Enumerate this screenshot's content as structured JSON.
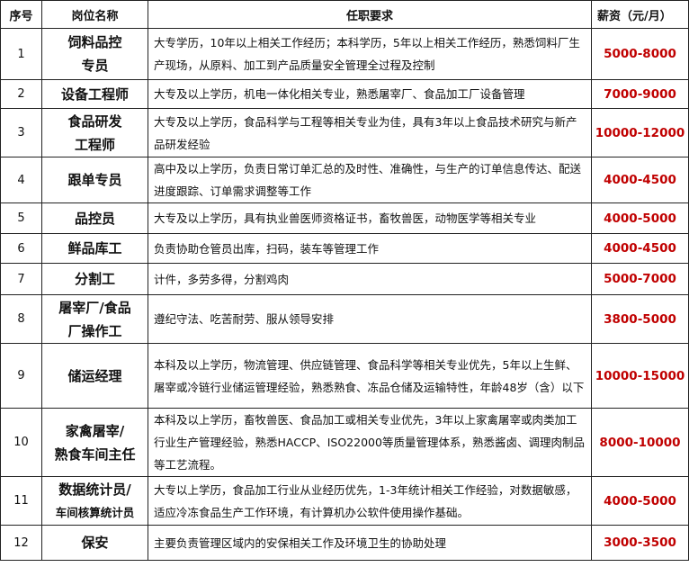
{
  "colors": {
    "salary": "#c00000",
    "border": "#222222"
  },
  "header": {
    "no": "序号",
    "title": "岗位名称",
    "requirement": "任职要求",
    "salary": "薪资（元/月）"
  },
  "rows": [
    {
      "no": "1",
      "title": [
        "饲料品控",
        "专员"
      ],
      "requirement": "大专学历，10年以上相关工作经历；本科学历，5年以上相关工作经历，熟悉饲料厂生产现场，从原料、加工到产品质量安全管理全过程及控制",
      "salary": "5000-8000"
    },
    {
      "no": "2",
      "title": [
        "设备工程师"
      ],
      "requirement": "大专及以上学历，机电一体化相关专业，熟悉屠宰厂、食品加工厂设备管理",
      "salary": "7000-9000"
    },
    {
      "no": "3",
      "title": [
        "食品研发",
        "工程师"
      ],
      "requirement": "大专及以上学历，食品科学与工程等相关专业为佳，具有3年以上食品技术研究与新产品研发经验",
      "salary": "10000-12000"
    },
    {
      "no": "4",
      "title": [
        "跟单专员"
      ],
      "requirement": "高中及以上学历，负责日常订单汇总的及时性、准确性，与生产的订单信息传达、配送进度跟踪、订单需求调整等工作",
      "salary": "4000-4500"
    },
    {
      "no": "5",
      "title": [
        "品控员"
      ],
      "requirement": "大专及以上学历，具有执业兽医师资格证书，畜牧兽医，动物医学等相关专业",
      "salary": "4000-5000"
    },
    {
      "no": "6",
      "title": [
        "鲜品库工"
      ],
      "requirement": "负责协助仓管员出库，扫码，装车等管理工作",
      "salary": "4000-4500"
    },
    {
      "no": "7",
      "title": [
        "分割工"
      ],
      "requirement": "计件，多劳多得，分割鸡肉",
      "salary": "5000-7000"
    },
    {
      "no": "8",
      "title": [
        "屠宰厂/食品",
        "厂操作工"
      ],
      "requirement": "遵纪守法、吃苦耐劳、服从领导安排",
      "salary": "3800-5000"
    },
    {
      "no": "9",
      "title": [
        "储运经理"
      ],
      "requirement": "本科及以上学历，物流管理、供应链管理、食品科学等相关专业优先，5年以上生鲜、屠宰或冷链行业储运管理经验，熟悉熟食、冻品仓储及运输特性，年龄48岁（含）以下",
      "salary": "10000-15000"
    },
    {
      "no": "10",
      "title": [
        "家禽屠宰/",
        "熟食车间主任"
      ],
      "requirement": "本科及以上学历，畜牧兽医、食品加工或相关专业优先，3年以上家禽屠宰或肉类加工行业生产管理经验，熟悉HACCP、ISO22000等质量管理体系，熟悉酱卤、调理肉制品等工艺流程。",
      "salary": "8000-10000"
    },
    {
      "no": "11",
      "title": [
        "数据统计员/",
        "车间核算统计员"
      ],
      "requirement": "大专以上学历，食品加工行业从业经历优先，1-3年统计相关工作经验，对数据敏感，适应冷冻食品生产工作环境，有计算机办公软件使用操作基础。",
      "salary": "4000-5000"
    },
    {
      "no": "12",
      "title": [
        "保安"
      ],
      "requirement": "主要负责管理区域内的安保相关工作及环境卫生的协助处理",
      "salary": "3000-3500"
    }
  ]
}
